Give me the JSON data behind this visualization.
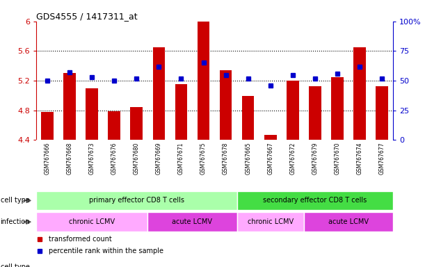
{
  "title": "GDS4555 / 1417311_at",
  "samples": [
    "GSM767666",
    "GSM767668",
    "GSM767673",
    "GSM767676",
    "GSM767680",
    "GSM767669",
    "GSM767671",
    "GSM767675",
    "GSM767678",
    "GSM767665",
    "GSM767667",
    "GSM767672",
    "GSM767679",
    "GSM767670",
    "GSM767674",
    "GSM767677"
  ],
  "bar_values": [
    4.78,
    5.3,
    5.1,
    4.79,
    4.84,
    5.65,
    5.15,
    6.0,
    5.34,
    4.99,
    4.47,
    5.2,
    5.13,
    5.25,
    5.65,
    5.13
  ],
  "dot_values": [
    50,
    57,
    53,
    50,
    52,
    62,
    52,
    65,
    55,
    52,
    46,
    55,
    52,
    56,
    62,
    52
  ],
  "ymin": 4.4,
  "ymax": 6.0,
  "yticks_left": [
    4.4,
    4.8,
    5.2,
    5.6,
    6.0
  ],
  "ytick_labels_left": [
    "4.4",
    "4.8",
    "5.2",
    "5.6",
    "6"
  ],
  "right_yticks": [
    0,
    25,
    50,
    75,
    100
  ],
  "right_ytick_labels": [
    "0",
    "25",
    "50",
    "75",
    "100%"
  ],
  "bar_color": "#cc0000",
  "dot_color": "#0000cc",
  "cell_type_groups": [
    {
      "label": "primary effector CD8 T cells",
      "start": 0,
      "end": 8,
      "color": "#aaffaa"
    },
    {
      "label": "secondary effector CD8 T cells",
      "start": 9,
      "end": 15,
      "color": "#44dd44"
    }
  ],
  "infection_groups": [
    {
      "label": "chronic LCMV",
      "start": 0,
      "end": 4,
      "color": "#ffaaff"
    },
    {
      "label": "acute LCMV",
      "start": 5,
      "end": 8,
      "color": "#dd44dd"
    },
    {
      "label": "chronic LCMV",
      "start": 9,
      "end": 11,
      "color": "#ffaaff"
    },
    {
      "label": "acute LCMV",
      "start": 12,
      "end": 15,
      "color": "#dd44dd"
    }
  ],
  "legend_red_label": "transformed count",
  "legend_blue_label": "percentile rank within the sample",
  "left_label_color": "#cc0000",
  "right_label_color": "#0000cc",
  "grid_color": "#000000",
  "tick_area_color": "#bbbbbb",
  "n_samples": 16
}
